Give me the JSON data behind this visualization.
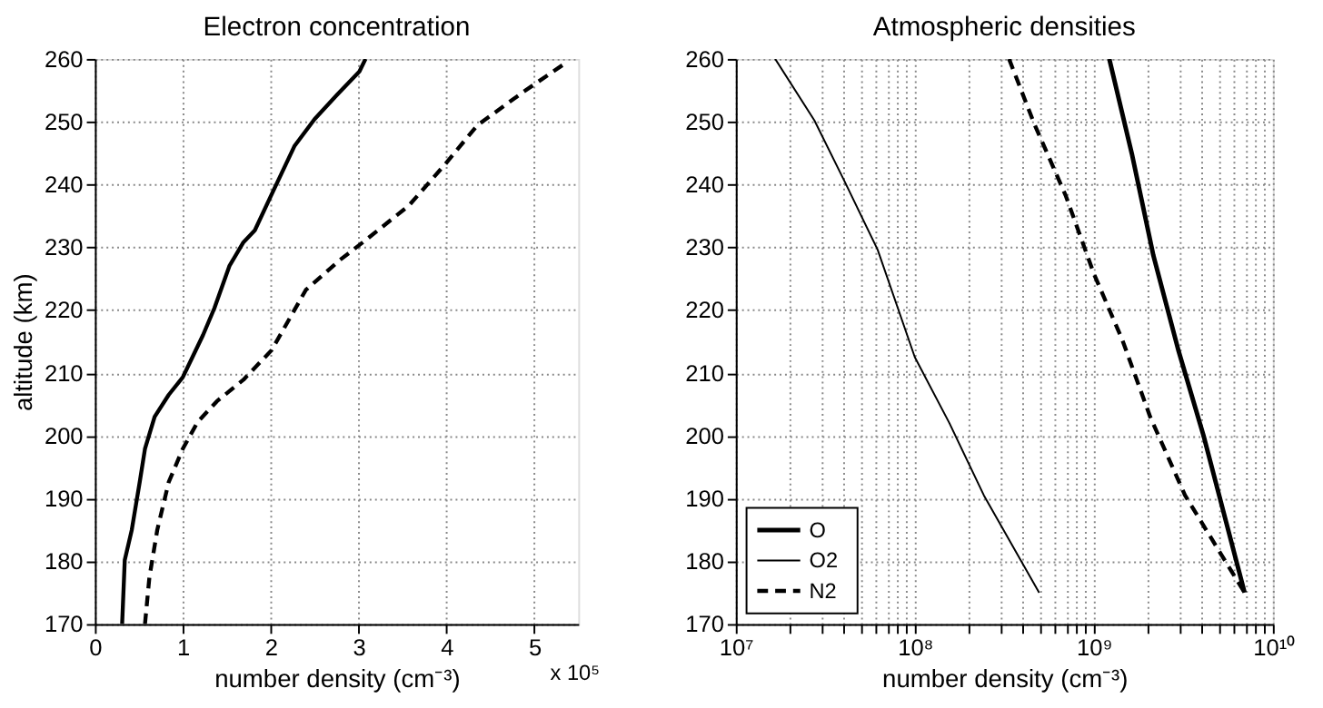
{
  "chart_data": [
    {
      "type": "line",
      "title": "Electron concentration",
      "xlabel": "number density (cm⁻³)",
      "ylabel": "altitude (km)",
      "xlim": [
        0,
        5.5
      ],
      "xticks": [
        0,
        1,
        2,
        3,
        4,
        5
      ],
      "ylim": [
        170,
        260
      ],
      "yticks": [
        170,
        180,
        190,
        200,
        210,
        220,
        230,
        240,
        250,
        260
      ],
      "grid": true,
      "annotations": [
        "x 10⁵"
      ],
      "series": [
        {
          "color": "#000000",
          "line_style": "solid",
          "x": [
            0.31,
            0.34,
            0.42,
            0.51,
            0.57,
            0.68,
            0.84,
            1.0,
            1.1,
            1.23,
            1.36,
            1.53,
            1.69,
            1.82,
            2.01,
            2.27,
            2.5,
            2.75,
            3.01,
            3.08
          ],
          "values": [
            170,
            180.2,
            185,
            192.6,
            197.9,
            203,
            206.5,
            209.3,
            212.2,
            216,
            220.3,
            227,
            230.8,
            232.7,
            238.4,
            246.1,
            250.4,
            254.2,
            258,
            260
          ]
        },
        {
          "color": "#000000",
          "line_style": "dashed",
          "x": [
            0.57,
            0.62,
            0.71,
            0.84,
            1.0,
            1.17,
            1.39,
            1.69,
            2.01,
            2.4,
            2.79,
            3.05,
            3.57,
            3.99,
            4.35,
            4.87,
            5.32
          ],
          "values": [
            170,
            177.4,
            185,
            192.6,
            197.9,
            202.2,
            205.5,
            208.9,
            213.6,
            223.2,
            228,
            230.8,
            236.6,
            243.3,
            249.4,
            254.7,
            259
          ]
        }
      ]
    },
    {
      "type": "line",
      "title": "Atmospheric densities",
      "xlabel": "number density (cm⁻³)",
      "log": "x",
      "xlim": [
        10000000,
        10000000000
      ],
      "xticks": [
        {
          "value": 10000000,
          "label": "10⁷"
        },
        {
          "value": 20000000,
          "label": null
        },
        {
          "value": 30000000,
          "label": null
        },
        {
          "value": 40000000,
          "label": null
        },
        {
          "value": 50000000,
          "label": null
        },
        {
          "value": 60000000,
          "label": null
        },
        {
          "value": 70000000,
          "label": null
        },
        {
          "value": 80000000,
          "label": null
        },
        {
          "value": 90000000,
          "label": null
        },
        {
          "value": 100000000,
          "label": "10⁸"
        },
        {
          "value": 200000000,
          "label": null
        },
        {
          "value": 300000000,
          "label": null
        },
        {
          "value": 400000000,
          "label": null
        },
        {
          "value": 500000000,
          "label": null
        },
        {
          "value": 600000000,
          "label": null
        },
        {
          "value": 700000000,
          "label": null
        },
        {
          "value": 800000000,
          "label": null
        },
        {
          "value": 900000000,
          "label": null
        },
        {
          "value": 1000000000,
          "label": "10⁹"
        },
        {
          "value": 2000000000,
          "label": null
        },
        {
          "value": 3000000000,
          "label": null
        },
        {
          "value": 4000000000,
          "label": null
        },
        {
          "value": 5000000000,
          "label": null
        },
        {
          "value": 6000000000,
          "label": null
        },
        {
          "value": 7000000000,
          "label": null
        },
        {
          "value": 8000000000,
          "label": null
        },
        {
          "value": 9000000000,
          "label": null
        },
        {
          "value": 10000000000,
          "label": "10¹⁰"
        }
      ],
      "ylim": [
        170,
        260
      ],
      "yticks": [
        170,
        180,
        190,
        200,
        210,
        220,
        230,
        240,
        250,
        260
      ],
      "grid": true,
      "legend": "bottom left",
      "series": [
        {
          "name": "O",
          "color": "#000000",
          "line_style": "solid",
          "x": [
            1220000000,
            1630000000,
            2150000000,
            2980000000,
            4100000000,
            6950000000
          ],
          "values": [
            260,
            244.9,
            228.7,
            213.4,
            200,
            175
          ]
        },
        {
          "name": "O2",
          "color": "#000000",
          "line_style": "solid",
          "x": [
            16600000,
            27500000,
            41000000,
            62000000,
            100000000,
            156000000,
            243000000,
            495000000
          ],
          "values": [
            260,
            250.2,
            240.2,
            229.6,
            212.5,
            202,
            190.5,
            175
          ]
        },
        {
          "name": "N2",
          "color": "#000000",
          "line_style": "dashed",
          "x": [
            336000000,
            464000000,
            695000000,
            1000000000,
            1440000000,
            2070000000,
            3230000000,
            6950000000
          ],
          "values": [
            260,
            249.7,
            238.3,
            225.8,
            215.3,
            202.9,
            190.5,
            175
          ]
        }
      ]
    }
  ]
}
